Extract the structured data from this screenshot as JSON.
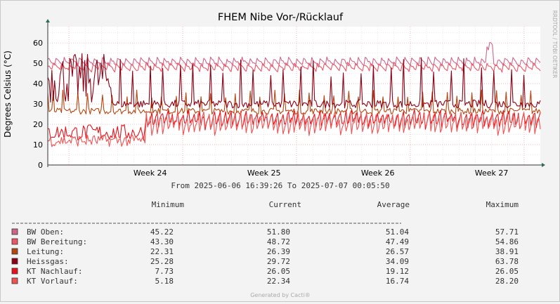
{
  "chart_data": {
    "type": "line",
    "title": "FHEM Nibe Vor-/Rücklauf",
    "ylabel": "Degrees Celsius (°C)",
    "xlabel": "",
    "ylim": [
      0,
      68
    ],
    "yticks": [
      0,
      10,
      20,
      30,
      40,
      50,
      60
    ],
    "xticks": [
      {
        "label": "Week 24",
        "x": 6.3
      },
      {
        "label": "Week 25",
        "x": 13.3
      },
      {
        "label": "Week 26",
        "x": 20.3
      },
      {
        "label": "Week 27",
        "x": 27.3
      }
    ],
    "x_range_days": [
      0,
      30.3
    ],
    "x_unit": "days since 2025-06-06 16:39:26",
    "grid": true,
    "series": [
      {
        "name": "BW Oben",
        "color": "#cc6688",
        "min": 45.22,
        "current": 51.8,
        "average": 51.04,
        "max": 57.71
      },
      {
        "name": "BW Bereitung",
        "color": "#ee5566",
        "min": 43.3,
        "current": 48.72,
        "average": 47.49,
        "max": 54.86
      },
      {
        "name": "Leitung",
        "color": "#b5460f",
        "min": 22.31,
        "current": 26.39,
        "average": 26.57,
        "max": 38.91
      },
      {
        "name": "Heissgas",
        "color": "#8b0014",
        "min": 25.28,
        "current": 29.72,
        "average": 34.09,
        "max": 63.78
      },
      {
        "name": "KT Nachlauf",
        "color": "#e8111a",
        "min": 7.73,
        "current": 26.05,
        "average": 19.12,
        "max": 26.05
      },
      {
        "name": "KT Vorlauf",
        "color": "#f05252",
        "min": 5.18,
        "current": 22.34,
        "average": 16.74,
        "max": 28.2
      }
    ]
  },
  "labels": {
    "range": "From 2025-06-06 16:39:26 To 2025-07-07 00:05:50",
    "col_min": "Minimum",
    "col_current": "Current",
    "col_average": "Average",
    "col_max": "Maximum",
    "side": "RRDTOOL / TOBI OETIKER",
    "footer": "Generated by Cacti®"
  }
}
